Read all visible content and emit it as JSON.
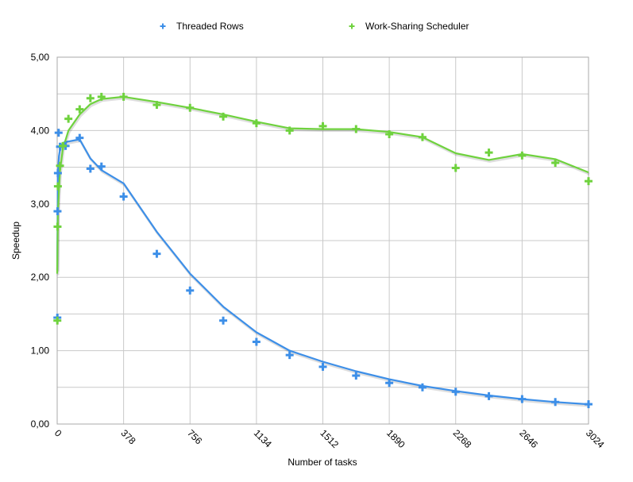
{
  "chart_data": {
    "type": "scatter",
    "title": "",
    "xlabel": "Number of tasks",
    "ylabel": "Speedup",
    "xlim": [
      0,
      3024
    ],
    "ylim": [
      0,
      5
    ],
    "x_ticks": [
      "0",
      "378",
      "756",
      "1134",
      "1512",
      "1890",
      "2268",
      "2646",
      "3024"
    ],
    "y_ticks": [
      "0,00",
      "1,00",
      "2,00",
      "3,00",
      "4,00",
      "5,00"
    ],
    "grid": true,
    "legend_position": "top",
    "series": [
      {
        "name": "Threaded Rows",
        "color": "#3d8fe8",
        "points": [
          [
            1,
            1.45
          ],
          [
            2,
            2.9
          ],
          [
            4,
            3.42
          ],
          [
            8,
            3.97
          ],
          [
            16,
            3.78
          ],
          [
            48,
            3.79
          ],
          [
            128,
            3.9
          ],
          [
            189,
            3.48
          ],
          [
            252,
            3.51
          ],
          [
            378,
            3.1
          ],
          [
            567,
            2.32
          ],
          [
            756,
            1.82
          ],
          [
            945,
            1.41
          ],
          [
            1134,
            1.12
          ],
          [
            1323,
            0.94
          ],
          [
            1512,
            0.78
          ],
          [
            1701,
            0.66
          ],
          [
            1890,
            0.56
          ],
          [
            2079,
            0.5
          ],
          [
            2268,
            0.44
          ],
          [
            2457,
            0.38
          ],
          [
            2646,
            0.34
          ],
          [
            2835,
            0.3
          ],
          [
            3024,
            0.27
          ]
        ],
        "trend": [
          [
            0,
            2.1
          ],
          [
            4,
            3.4
          ],
          [
            10,
            3.65
          ],
          [
            20,
            3.8
          ],
          [
            40,
            3.84
          ],
          [
            128,
            3.88
          ],
          [
            189,
            3.62
          ],
          [
            252,
            3.46
          ],
          [
            378,
            3.28
          ],
          [
            567,
            2.62
          ],
          [
            756,
            2.05
          ],
          [
            945,
            1.6
          ],
          [
            1134,
            1.25
          ],
          [
            1323,
            1.0
          ],
          [
            1512,
            0.85
          ],
          [
            1701,
            0.72
          ],
          [
            1890,
            0.61
          ],
          [
            2079,
            0.52
          ],
          [
            2268,
            0.45
          ],
          [
            2457,
            0.39
          ],
          [
            2646,
            0.34
          ],
          [
            2835,
            0.3
          ],
          [
            3024,
            0.27
          ]
        ]
      },
      {
        "name": "Work-Sharing Scheduler",
        "color": "#6fd23e",
        "points": [
          [
            1,
            1.41
          ],
          [
            2,
            2.69
          ],
          [
            4,
            3.24
          ],
          [
            16,
            3.52
          ],
          [
            32,
            3.79
          ],
          [
            64,
            4.16
          ],
          [
            128,
            4.29
          ],
          [
            189,
            4.44
          ],
          [
            252,
            4.46
          ],
          [
            378,
            4.46
          ],
          [
            567,
            4.35
          ],
          [
            756,
            4.31
          ],
          [
            945,
            4.19
          ],
          [
            1134,
            4.1
          ],
          [
            1323,
            4.0
          ],
          [
            1512,
            4.06
          ],
          [
            1701,
            4.02
          ],
          [
            1890,
            3.95
          ],
          [
            2079,
            3.91
          ],
          [
            2268,
            3.49
          ],
          [
            2457,
            3.7
          ],
          [
            2646,
            3.66
          ],
          [
            2835,
            3.56
          ],
          [
            3024,
            3.31
          ]
        ],
        "trend": [
          [
            0,
            2.05
          ],
          [
            4,
            2.9
          ],
          [
            16,
            3.45
          ],
          [
            32,
            3.75
          ],
          [
            64,
            4.0
          ],
          [
            128,
            4.22
          ],
          [
            189,
            4.36
          ],
          [
            252,
            4.43
          ],
          [
            378,
            4.46
          ],
          [
            567,
            4.39
          ],
          [
            756,
            4.31
          ],
          [
            945,
            4.22
          ],
          [
            1134,
            4.12
          ],
          [
            1323,
            4.03
          ],
          [
            1512,
            4.02
          ],
          [
            1701,
            4.02
          ],
          [
            1890,
            3.98
          ],
          [
            2079,
            3.91
          ],
          [
            2268,
            3.69
          ],
          [
            2457,
            3.6
          ],
          [
            2646,
            3.68
          ],
          [
            2835,
            3.61
          ],
          [
            3024,
            3.43
          ]
        ]
      }
    ]
  }
}
